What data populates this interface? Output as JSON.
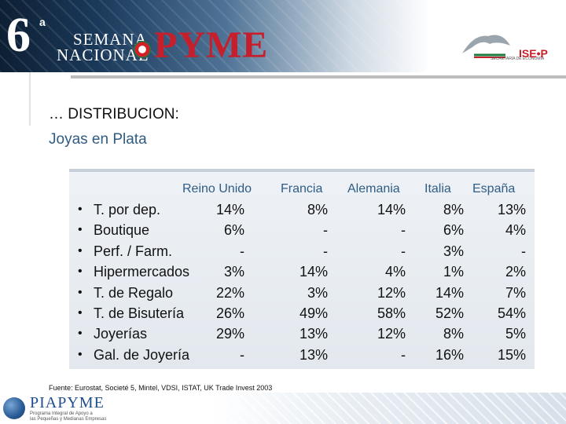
{
  "banner": {
    "edition": "6",
    "edition_sup": "a",
    "semana": "SEMANA",
    "nacional": "NACIONAL",
    "pyme": "PYME",
    "ministry": "SECRETARÍA DE ECONOMÍA"
  },
  "title": {
    "line1": "… DISTRIBUCION:",
    "line2": "Joyas en Plata"
  },
  "table": {
    "headers": [
      "Reino Unido",
      "Francia",
      "Alemania",
      "Italia",
      "España"
    ],
    "rows": [
      {
        "bullet": "•",
        "label": "T. por dep.",
        "values": [
          "14%",
          "8%",
          "14%",
          "8%",
          "13%"
        ]
      },
      {
        "bullet": "•",
        "label": "Boutique",
        "values": [
          "6%",
          "-",
          "-",
          "6%",
          "4%"
        ]
      },
      {
        "bullet": "•",
        "label": "Perf. / Farm.",
        "values": [
          "-",
          "-",
          "-",
          "3%",
          "-"
        ]
      },
      {
        "bullet": "•",
        "label": "Hipermercados",
        "values": [
          "3%",
          "14%",
          "4%",
          "1%",
          "2%"
        ]
      },
      {
        "bullet": "•",
        "label": "T. de Regalo",
        "values": [
          "22%",
          "3%",
          "12%",
          "14%",
          "7%"
        ]
      },
      {
        "bullet": "•",
        "label": "T. de Bisutería",
        "values": [
          "26%",
          "49%",
          "58%",
          "52%",
          "54%"
        ]
      },
      {
        "bullet": "•",
        "label": "Joyerías",
        "values": [
          "29%",
          "13%",
          "12%",
          "8%",
          "5%"
        ]
      },
      {
        "bullet": "•",
        "label": "Gal. de Joyería",
        "values": [
          "-",
          "13%",
          "-",
          "16%",
          "15%"
        ]
      }
    ]
  },
  "source": "Fuente: Eurostat, Societé 5, Mintel, VDSI, ISTAT, UK Trade Invest 2003",
  "footer": {
    "logo": "PIAPYME",
    "tag1": "Programa Integral de Apoyo a",
    "tag2": "las Pequeñas y Medianas Empresas"
  }
}
